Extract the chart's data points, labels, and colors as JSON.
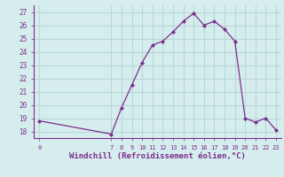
{
  "x": [
    0,
    7,
    8,
    9,
    10,
    11,
    12,
    13,
    14,
    15,
    16,
    17,
    18,
    19,
    20,
    21,
    22,
    23
  ],
  "y": [
    18.8,
    17.8,
    19.8,
    21.5,
    23.2,
    24.5,
    24.8,
    25.5,
    26.3,
    26.9,
    26.0,
    26.3,
    25.7,
    24.8,
    19.0,
    18.7,
    19.0,
    18.1
  ],
  "line_color": "#7b2d8b",
  "marker_color": "#7b2d8b",
  "bg_color": "#d6edee",
  "grid_color": "#b8d8d8",
  "axis_color": "#7b2d8b",
  "xlabel": "Windchill (Refroidissement éolien,°C)",
  "xlabel_color": "#7b2d8b",
  "tick_color": "#7b2d8b",
  "ylim": [
    17.5,
    27.5
  ],
  "xlim": [
    -0.5,
    23.5
  ],
  "yticks": [
    18,
    19,
    20,
    21,
    22,
    23,
    24,
    25,
    26,
    27
  ],
  "xticks": [
    0,
    7,
    8,
    9,
    10,
    11,
    12,
    13,
    14,
    15,
    16,
    17,
    18,
    19,
    20,
    21,
    22,
    23
  ]
}
